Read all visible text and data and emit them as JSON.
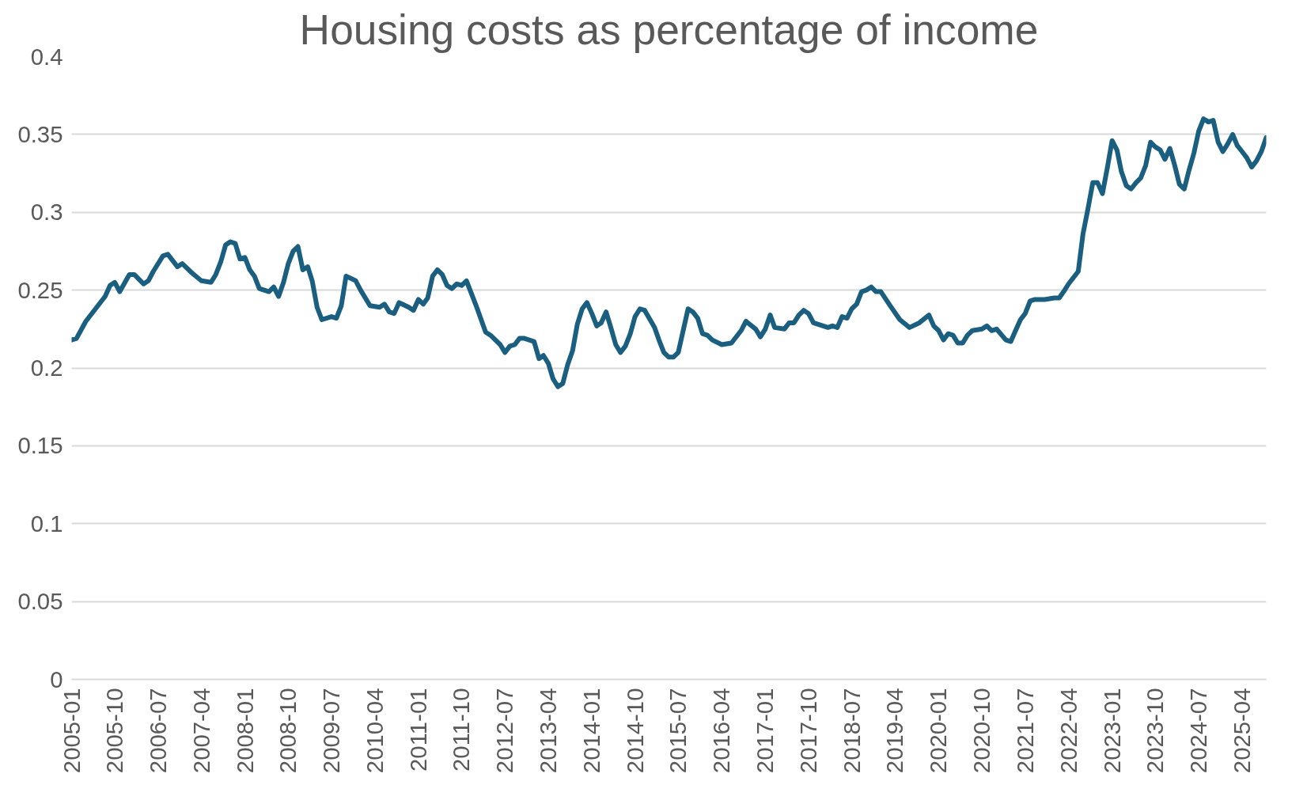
{
  "chart_data": {
    "type": "line",
    "title": "Housing costs as percentage of income",
    "x": [
      "2005-01",
      "2005-02",
      "2005-04",
      "2005-06",
      "2005-08",
      "2005-09",
      "2005-10",
      "2005-11",
      "2006-01",
      "2006-02",
      "2006-04",
      "2006-05",
      "2006-06",
      "2006-08",
      "2006-09",
      "2006-11",
      "2006-12",
      "2007-02",
      "2007-04",
      "2007-06",
      "2007-07",
      "2007-08",
      "2007-09",
      "2007-10",
      "2007-11",
      "2007-12",
      "2008-01",
      "2008-02",
      "2008-03",
      "2008-04",
      "2008-06",
      "2008-07",
      "2008-08",
      "2008-09",
      "2008-10",
      "2008-11",
      "2008-12",
      "2009-01",
      "2009-02",
      "2009-03",
      "2009-04",
      "2009-05",
      "2009-07",
      "2009-08",
      "2009-09",
      "2009-10",
      "2009-12",
      "2010-01",
      "2010-03",
      "2010-05",
      "2010-06",
      "2010-07",
      "2010-08",
      "2010-09",
      "2010-11",
      "2010-12",
      "2011-01",
      "2011-02",
      "2011-03",
      "2011-04",
      "2011-05",
      "2011-06",
      "2011-07",
      "2011-08",
      "2011-09",
      "2011-10",
      "2011-11",
      "2012-01",
      "2012-03",
      "2012-04",
      "2012-06",
      "2012-07",
      "2012-08",
      "2012-09",
      "2012-10",
      "2012-11",
      "2013-01",
      "2013-02",
      "2013-03",
      "2013-04",
      "2013-05",
      "2013-06",
      "2013-07",
      "2013-08",
      "2013-09",
      "2013-10",
      "2013-11",
      "2013-12",
      "2014-01",
      "2014-02",
      "2014-03",
      "2014-04",
      "2014-05",
      "2014-06",
      "2014-07",
      "2014-08",
      "2014-09",
      "2014-10",
      "2014-11",
      "2014-12",
      "2015-02",
      "2015-03",
      "2015-04",
      "2015-05",
      "2015-06",
      "2015-07",
      "2015-08",
      "2015-09",
      "2015-10",
      "2015-11",
      "2015-12",
      "2016-01",
      "2016-02",
      "2016-04",
      "2016-06",
      "2016-08",
      "2016-09",
      "2016-11",
      "2016-12",
      "2017-01",
      "2017-02",
      "2017-03",
      "2017-05",
      "2017-06",
      "2017-07",
      "2017-08",
      "2017-09",
      "2017-10",
      "2017-11",
      "2018-01",
      "2018-02",
      "2018-03",
      "2018-04",
      "2018-05",
      "2018-06",
      "2018-07",
      "2018-08",
      "2018-09",
      "2018-10",
      "2018-11",
      "2018-12",
      "2019-01",
      "2019-03",
      "2019-05",
      "2019-07",
      "2019-09",
      "2019-11",
      "2019-12",
      "2020-01",
      "2020-02",
      "2020-03",
      "2020-04",
      "2020-05",
      "2020-06",
      "2020-07",
      "2020-08",
      "2020-10",
      "2020-11",
      "2020-12",
      "2021-01",
      "2021-03",
      "2021-04",
      "2021-05",
      "2021-06",
      "2021-07",
      "2021-08",
      "2021-09",
      "2021-11",
      "2022-01",
      "2022-02",
      "2022-03",
      "2022-04",
      "2022-06",
      "2022-07",
      "2022-08",
      "2022-09",
      "2022-10",
      "2022-11",
      "2022-12",
      "2023-01",
      "2023-02",
      "2023-03",
      "2023-04",
      "2023-05",
      "2023-06",
      "2023-07",
      "2023-08",
      "2023-09",
      "2023-10",
      "2023-11",
      "2023-12",
      "2024-01",
      "2024-02",
      "2024-03",
      "2024-04",
      "2024-05",
      "2024-06",
      "2024-07",
      "2024-08",
      "2024-09",
      "2024-10",
      "2024-11",
      "2024-12",
      "2025-01",
      "2025-02",
      "2025-03",
      "2025-04",
      "2025-05",
      "2025-06",
      "2025-07",
      "2025-08",
      "2025-09"
    ],
    "series": [
      {
        "color": "#1a5f80",
        "values": [
          0.218,
          0.219,
          0.23,
          0.238,
          0.246,
          0.253,
          0.255,
          0.249,
          0.26,
          0.26,
          0.254,
          0.256,
          0.262,
          0.272,
          0.273,
          0.265,
          0.267,
          0.261,
          0.256,
          0.255,
          0.26,
          0.268,
          0.279,
          0.281,
          0.28,
          0.27,
          0.271,
          0.263,
          0.259,
          0.251,
          0.249,
          0.252,
          0.246,
          0.255,
          0.267,
          0.275,
          0.278,
          0.263,
          0.265,
          0.256,
          0.239,
          0.231,
          0.233,
          0.232,
          0.24,
          0.259,
          0.256,
          0.25,
          0.24,
          0.239,
          0.241,
          0.236,
          0.235,
          0.242,
          0.239,
          0.237,
          0.244,
          0.241,
          0.245,
          0.259,
          0.263,
          0.26,
          0.253,
          0.251,
          0.254,
          0.253,
          0.256,
          0.24,
          0.223,
          0.221,
          0.215,
          0.21,
          0.214,
          0.215,
          0.219,
          0.219,
          0.217,
          0.206,
          0.208,
          0.203,
          0.193,
          0.188,
          0.19,
          0.202,
          0.211,
          0.228,
          0.238,
          0.242,
          0.235,
          0.227,
          0.229,
          0.236,
          0.226,
          0.215,
          0.21,
          0.214,
          0.222,
          0.233,
          0.238,
          0.237,
          0.226,
          0.218,
          0.21,
          0.207,
          0.207,
          0.21,
          0.224,
          0.238,
          0.236,
          0.232,
          0.222,
          0.221,
          0.218,
          0.215,
          0.216,
          0.224,
          0.23,
          0.225,
          0.22,
          0.225,
          0.234,
          0.226,
          0.225,
          0.229,
          0.229,
          0.234,
          0.237,
          0.235,
          0.229,
          0.227,
          0.226,
          0.227,
          0.226,
          0.233,
          0.232,
          0.238,
          0.241,
          0.249,
          0.25,
          0.252,
          0.249,
          0.249,
          0.24,
          0.231,
          0.226,
          0.229,
          0.234,
          0.227,
          0.224,
          0.218,
          0.222,
          0.221,
          0.216,
          0.216,
          0.221,
          0.224,
          0.225,
          0.227,
          0.224,
          0.225,
          0.218,
          0.217,
          0.224,
          0.231,
          0.235,
          0.243,
          0.244,
          0.244,
          0.245,
          0.245,
          0.249,
          0.254,
          0.262,
          0.286,
          0.302,
          0.319,
          0.319,
          0.312,
          0.328,
          0.346,
          0.34,
          0.326,
          0.317,
          0.315,
          0.319,
          0.322,
          0.33,
          0.345,
          0.342,
          0.34,
          0.334,
          0.341,
          0.33,
          0.318,
          0.315,
          0.327,
          0.338,
          0.352,
          0.36,
          0.358,
          0.359,
          0.345,
          0.339,
          0.344,
          0.35,
          0.343,
          0.339,
          0.335,
          0.329,
          0.333,
          0.339,
          0.348
        ]
      }
    ],
    "xlim": [
      "2005-01",
      "2025-09"
    ],
    "xticks": [
      "2005-01",
      "2005-10",
      "2006-07",
      "2007-04",
      "2008-01",
      "2008-10",
      "2009-07",
      "2010-04",
      "2011-01",
      "2011-10",
      "2012-07",
      "2013-04",
      "2014-01",
      "2014-10",
      "2015-07",
      "2016-04",
      "2017-01",
      "2017-10",
      "2018-07",
      "2019-04",
      "2020-01",
      "2020-10",
      "2021-07",
      "2022-04",
      "2023-01",
      "2023-10",
      "2024-07",
      "2025-04"
    ],
    "ylim": [
      0,
      0.4
    ],
    "yticks": [
      0,
      0.05,
      0.1,
      0.15,
      0.2,
      0.25,
      0.3,
      0.35,
      0.4
    ],
    "grid": "y",
    "marker": "none",
    "line_style": "solid"
  }
}
